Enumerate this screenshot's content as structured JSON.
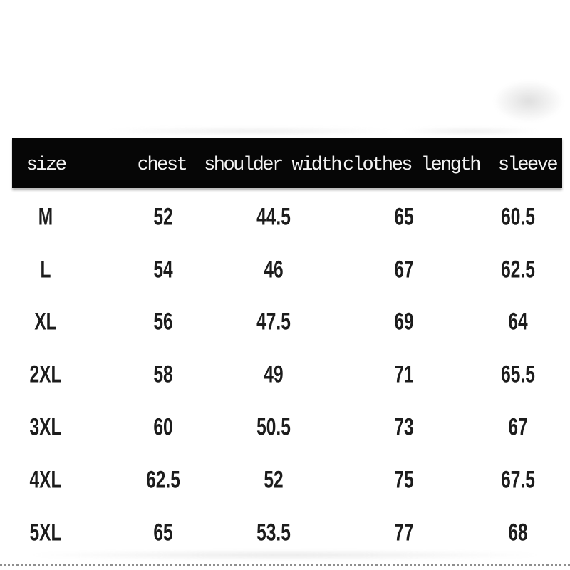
{
  "chart_data": {
    "type": "table",
    "title": "",
    "columns": [
      "size",
      "chest",
      "shoulder width",
      "clothes length",
      "sleeve"
    ],
    "rows": [
      [
        "M",
        "52",
        "44.5",
        "65",
        "60.5"
      ],
      [
        "L",
        "54",
        "46",
        "67",
        "62.5"
      ],
      [
        "XL",
        "56",
        "47.5",
        "69",
        "64"
      ],
      [
        "2XL",
        "58",
        "49",
        "71",
        "65.5"
      ],
      [
        "3XL",
        "60",
        "50.5",
        "73",
        "67"
      ],
      [
        "4XL",
        "62.5",
        "52",
        "75",
        "67.5"
      ],
      [
        "5XL",
        "65",
        "53.5",
        "77",
        "68"
      ]
    ]
  },
  "colors": {
    "header_bg": "#060606",
    "header_text": "#f3f3f3",
    "body_text": "#1c1c1c",
    "dotted_line": "#8f8f8f",
    "background": "#ffffff"
  }
}
